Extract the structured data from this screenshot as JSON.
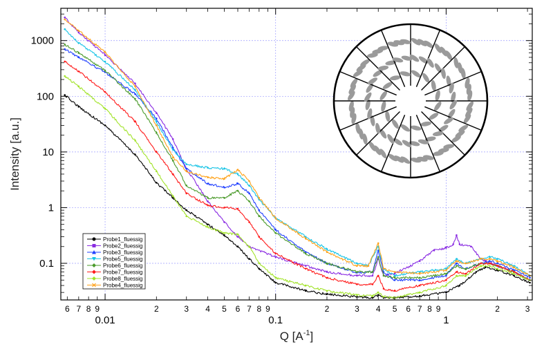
{
  "chart_data": {
    "type": "line",
    "xlabel": "Q [A",
    "xlabel_sup": "-1",
    "xlabel_close": "]",
    "ylabel": "Intensity [a.u.]",
    "x_scale": "log",
    "y_scale": "log",
    "xlim": [
      0.0055,
      3.2
    ],
    "ylim": [
      0.022,
      3800
    ],
    "grid": true,
    "legend_position": "bottom-left",
    "x_major_ticks": [
      {
        "value": 0.01,
        "label": "0.01"
      },
      {
        "value": 0.1,
        "label": "0.1"
      },
      {
        "value": 1,
        "label": "1"
      }
    ],
    "x_minor_ticks": [
      {
        "value": 0.006,
        "label": "6"
      },
      {
        "value": 0.007,
        "label": "7"
      },
      {
        "value": 0.008,
        "label": "8"
      },
      {
        "value": 0.009,
        "label": "9"
      },
      {
        "value": 0.02,
        "label": "2"
      },
      {
        "value": 0.03,
        "label": "3"
      },
      {
        "value": 0.04,
        "label": "4"
      },
      {
        "value": 0.05,
        "label": "5"
      },
      {
        "value": 0.06,
        "label": "6"
      },
      {
        "value": 0.07,
        "label": "7"
      },
      {
        "value": 0.08,
        "label": "8"
      },
      {
        "value": 0.09,
        "label": "9"
      },
      {
        "value": 0.2,
        "label": "2"
      },
      {
        "value": 0.3,
        "label": "3"
      },
      {
        "value": 0.4,
        "label": "4"
      },
      {
        "value": 0.5,
        "label": "5"
      },
      {
        "value": 0.6,
        "label": "6"
      },
      {
        "value": 0.7,
        "label": "7"
      },
      {
        "value": 0.8,
        "label": "8"
      },
      {
        "value": 0.9,
        "label": "9"
      },
      {
        "value": 2,
        "label": "2"
      },
      {
        "value": 3,
        "label": "3"
      }
    ],
    "y_ticks": [
      {
        "value": 0.1,
        "label": "0.1"
      },
      {
        "value": 1,
        "label": "1"
      },
      {
        "value": 10,
        "label": "10"
      },
      {
        "value": 100,
        "label": "100"
      },
      {
        "value": 1000,
        "label": "1000"
      }
    ],
    "series": [
      {
        "name": "Probe1_fluessig",
        "color": "#000000",
        "marker": "circle",
        "points": [
          [
            0.0058,
            105
          ],
          [
            0.007,
            65
          ],
          [
            0.01,
            30
          ],
          [
            0.015,
            9
          ],
          [
            0.02,
            2.8
          ],
          [
            0.025,
            1.5
          ],
          [
            0.03,
            0.9
          ],
          [
            0.04,
            0.5
          ],
          [
            0.05,
            0.32
          ],
          [
            0.06,
            0.2
          ],
          [
            0.07,
            0.12
          ],
          [
            0.08,
            0.08
          ],
          [
            0.1,
            0.045
          ],
          [
            0.15,
            0.032
          ],
          [
            0.2,
            0.028
          ],
          [
            0.3,
            0.025
          ],
          [
            0.37,
            0.024
          ],
          [
            0.4,
            0.027
          ],
          [
            0.43,
            0.024
          ],
          [
            0.5,
            0.024
          ],
          [
            0.7,
            0.026
          ],
          [
            1,
            0.03
          ],
          [
            1.2,
            0.04
          ],
          [
            1.5,
            0.07
          ],
          [
            1.7,
            0.085
          ],
          [
            2,
            0.075
          ],
          [
            2.5,
            0.06
          ],
          [
            3.1,
            0.045
          ]
        ]
      },
      {
        "name": "Probe2_fluessig",
        "color": "#8a2be2",
        "marker": "square",
        "points": [
          [
            0.0058,
            2600
          ],
          [
            0.007,
            1400
          ],
          [
            0.01,
            550
          ],
          [
            0.015,
            170
          ],
          [
            0.02,
            50
          ],
          [
            0.025,
            17
          ],
          [
            0.03,
            5
          ],
          [
            0.04,
            1.3
          ],
          [
            0.05,
            0.55
          ],
          [
            0.06,
            0.3
          ],
          [
            0.07,
            0.2
          ],
          [
            0.1,
            0.13
          ],
          [
            0.15,
            0.09
          ],
          [
            0.2,
            0.07
          ],
          [
            0.3,
            0.06
          ],
          [
            0.37,
            0.06
          ],
          [
            0.4,
            0.12
          ],
          [
            0.43,
            0.06
          ],
          [
            0.5,
            0.065
          ],
          [
            0.7,
            0.11
          ],
          [
            0.85,
            0.17
          ],
          [
            1,
            0.19
          ],
          [
            1.1,
            0.22
          ],
          [
            1.15,
            0.32
          ],
          [
            1.2,
            0.22
          ],
          [
            1.4,
            0.2
          ],
          [
            1.6,
            0.12
          ],
          [
            1.7,
            0.11
          ],
          [
            2,
            0.09
          ],
          [
            2.5,
            0.07
          ],
          [
            3.1,
            0.05
          ]
        ]
      },
      {
        "name": "Probe3_fluessig",
        "color": "#1f3fff",
        "marker": "triangle-up",
        "points": [
          [
            0.0058,
            700
          ],
          [
            0.007,
            500
          ],
          [
            0.01,
            270
          ],
          [
            0.015,
            110
          ],
          [
            0.02,
            40
          ],
          [
            0.025,
            12
          ],
          [
            0.03,
            5
          ],
          [
            0.04,
            2.7
          ],
          [
            0.05,
            2.3
          ],
          [
            0.06,
            2.7
          ],
          [
            0.07,
            1.8
          ],
          [
            0.08,
            0.9
          ],
          [
            0.1,
            0.4
          ],
          [
            0.15,
            0.16
          ],
          [
            0.2,
            0.1
          ],
          [
            0.3,
            0.068
          ],
          [
            0.37,
            0.07
          ],
          [
            0.4,
            0.17
          ],
          [
            0.43,
            0.07
          ],
          [
            0.5,
            0.05
          ],
          [
            0.7,
            0.05
          ],
          [
            1,
            0.06
          ],
          [
            1.15,
            0.1
          ],
          [
            1.3,
            0.08
          ],
          [
            1.6,
            0.1
          ],
          [
            1.8,
            0.11
          ],
          [
            2,
            0.1
          ],
          [
            2.5,
            0.075
          ],
          [
            3.1,
            0.055
          ]
        ]
      },
      {
        "name": "Probe5_fluessig",
        "color": "#19c4e6",
        "marker": "triangle-down",
        "points": [
          [
            0.0058,
            1600
          ],
          [
            0.007,
            900
          ],
          [
            0.01,
            420
          ],
          [
            0.015,
            130
          ],
          [
            0.02,
            35
          ],
          [
            0.025,
            11
          ],
          [
            0.03,
            6
          ],
          [
            0.04,
            5.2
          ],
          [
            0.05,
            5
          ],
          [
            0.06,
            4
          ],
          [
            0.07,
            2.5
          ],
          [
            0.08,
            1.4
          ],
          [
            0.1,
            0.65
          ],
          [
            0.15,
            0.3
          ],
          [
            0.2,
            0.18
          ],
          [
            0.3,
            0.1
          ],
          [
            0.35,
            0.09
          ],
          [
            0.4,
            0.2
          ],
          [
            0.43,
            0.08
          ],
          [
            0.5,
            0.06
          ],
          [
            0.7,
            0.07
          ],
          [
            1,
            0.08
          ],
          [
            1.15,
            0.12
          ],
          [
            1.3,
            0.1
          ],
          [
            1.6,
            0.12
          ],
          [
            1.8,
            0.13
          ],
          [
            2,
            0.12
          ],
          [
            2.5,
            0.09
          ],
          [
            3.1,
            0.06
          ]
        ]
      },
      {
        "name": "Probe6_fluessig",
        "color": "#4a9a2a",
        "marker": "diamond",
        "points": [
          [
            0.0058,
            850
          ],
          [
            0.007,
            600
          ],
          [
            0.01,
            290
          ],
          [
            0.015,
            90
          ],
          [
            0.02,
            22
          ],
          [
            0.025,
            7
          ],
          [
            0.03,
            2.5
          ],
          [
            0.04,
            1.5
          ],
          [
            0.05,
            1.5
          ],
          [
            0.06,
            2
          ],
          [
            0.07,
            1.3
          ],
          [
            0.08,
            0.7
          ],
          [
            0.1,
            0.35
          ],
          [
            0.15,
            0.15
          ],
          [
            0.2,
            0.1
          ],
          [
            0.3,
            0.07
          ],
          [
            0.37,
            0.07
          ],
          [
            0.4,
            0.13
          ],
          [
            0.43,
            0.06
          ],
          [
            0.5,
            0.055
          ],
          [
            0.7,
            0.055
          ],
          [
            1,
            0.065
          ],
          [
            1.15,
            0.09
          ],
          [
            1.3,
            0.08
          ],
          [
            1.6,
            0.1
          ],
          [
            1.8,
            0.1
          ],
          [
            2,
            0.09
          ],
          [
            2.5,
            0.07
          ],
          [
            3.1,
            0.05
          ]
        ]
      },
      {
        "name": "Probe7_fluessig",
        "color": "#ff1a1a",
        "marker": "diamond",
        "points": [
          [
            0.0058,
            420
          ],
          [
            0.007,
            280
          ],
          [
            0.01,
            120
          ],
          [
            0.015,
            35
          ],
          [
            0.02,
            10
          ],
          [
            0.025,
            4
          ],
          [
            0.03,
            1.8
          ],
          [
            0.04,
            1.1
          ],
          [
            0.05,
            1
          ],
          [
            0.06,
            0.95
          ],
          [
            0.07,
            0.55
          ],
          [
            0.08,
            0.3
          ],
          [
            0.1,
            0.15
          ],
          [
            0.15,
            0.08
          ],
          [
            0.2,
            0.055
          ],
          [
            0.3,
            0.042
          ],
          [
            0.37,
            0.042
          ],
          [
            0.4,
            0.06
          ],
          [
            0.43,
            0.035
          ],
          [
            0.5,
            0.032
          ],
          [
            0.7,
            0.04
          ],
          [
            1,
            0.05
          ],
          [
            1.15,
            0.07
          ],
          [
            1.3,
            0.065
          ],
          [
            1.6,
            0.1
          ],
          [
            1.8,
            0.1
          ],
          [
            2,
            0.09
          ],
          [
            2.5,
            0.07
          ],
          [
            3.1,
            0.05
          ]
        ]
      },
      {
        "name": "Probe8_fluessig",
        "color": "#a2e32a",
        "marker": "diamond",
        "points": [
          [
            0.0058,
            230
          ],
          [
            0.007,
            150
          ],
          [
            0.01,
            60
          ],
          [
            0.015,
            16
          ],
          [
            0.02,
            4.5
          ],
          [
            0.025,
            1.6
          ],
          [
            0.03,
            0.7
          ],
          [
            0.04,
            0.45
          ],
          [
            0.05,
            0.35
          ],
          [
            0.06,
            0.33
          ],
          [
            0.07,
            0.2
          ],
          [
            0.08,
            0.1
          ],
          [
            0.1,
            0.055
          ],
          [
            0.15,
            0.04
          ],
          [
            0.2,
            0.032
          ],
          [
            0.3,
            0.027
          ],
          [
            0.37,
            0.026
          ],
          [
            0.4,
            0.03
          ],
          [
            0.43,
            0.025
          ],
          [
            0.5,
            0.024
          ],
          [
            0.7,
            0.03
          ],
          [
            1,
            0.04
          ],
          [
            1.15,
            0.06
          ],
          [
            1.3,
            0.06
          ],
          [
            1.6,
            0.09
          ],
          [
            1.8,
            0.09
          ],
          [
            2,
            0.08
          ],
          [
            2.5,
            0.065
          ],
          [
            3.1,
            0.05
          ]
        ]
      },
      {
        "name": "Probe4_fluessig",
        "color": "#ffa21a",
        "marker": "x",
        "points": [
          [
            0.0058,
            2400
          ],
          [
            0.007,
            1500
          ],
          [
            0.01,
            620
          ],
          [
            0.015,
            150
          ],
          [
            0.02,
            30
          ],
          [
            0.025,
            8
          ],
          [
            0.03,
            4.5
          ],
          [
            0.04,
            3.5
          ],
          [
            0.05,
            3.3
          ],
          [
            0.06,
            4.8
          ],
          [
            0.07,
            3
          ],
          [
            0.08,
            1.5
          ],
          [
            0.1,
            0.65
          ],
          [
            0.15,
            0.28
          ],
          [
            0.2,
            0.16
          ],
          [
            0.3,
            0.09
          ],
          [
            0.35,
            0.09
          ],
          [
            0.4,
            0.23
          ],
          [
            0.43,
            0.08
          ],
          [
            0.5,
            0.07
          ],
          [
            0.7,
            0.065
          ],
          [
            1,
            0.075
          ],
          [
            1.15,
            0.11
          ],
          [
            1.3,
            0.1
          ],
          [
            1.6,
            0.12
          ],
          [
            1.8,
            0.12
          ],
          [
            2,
            0.11
          ],
          [
            2.5,
            0.085
          ],
          [
            3.1,
            0.06
          ]
        ]
      }
    ]
  }
}
